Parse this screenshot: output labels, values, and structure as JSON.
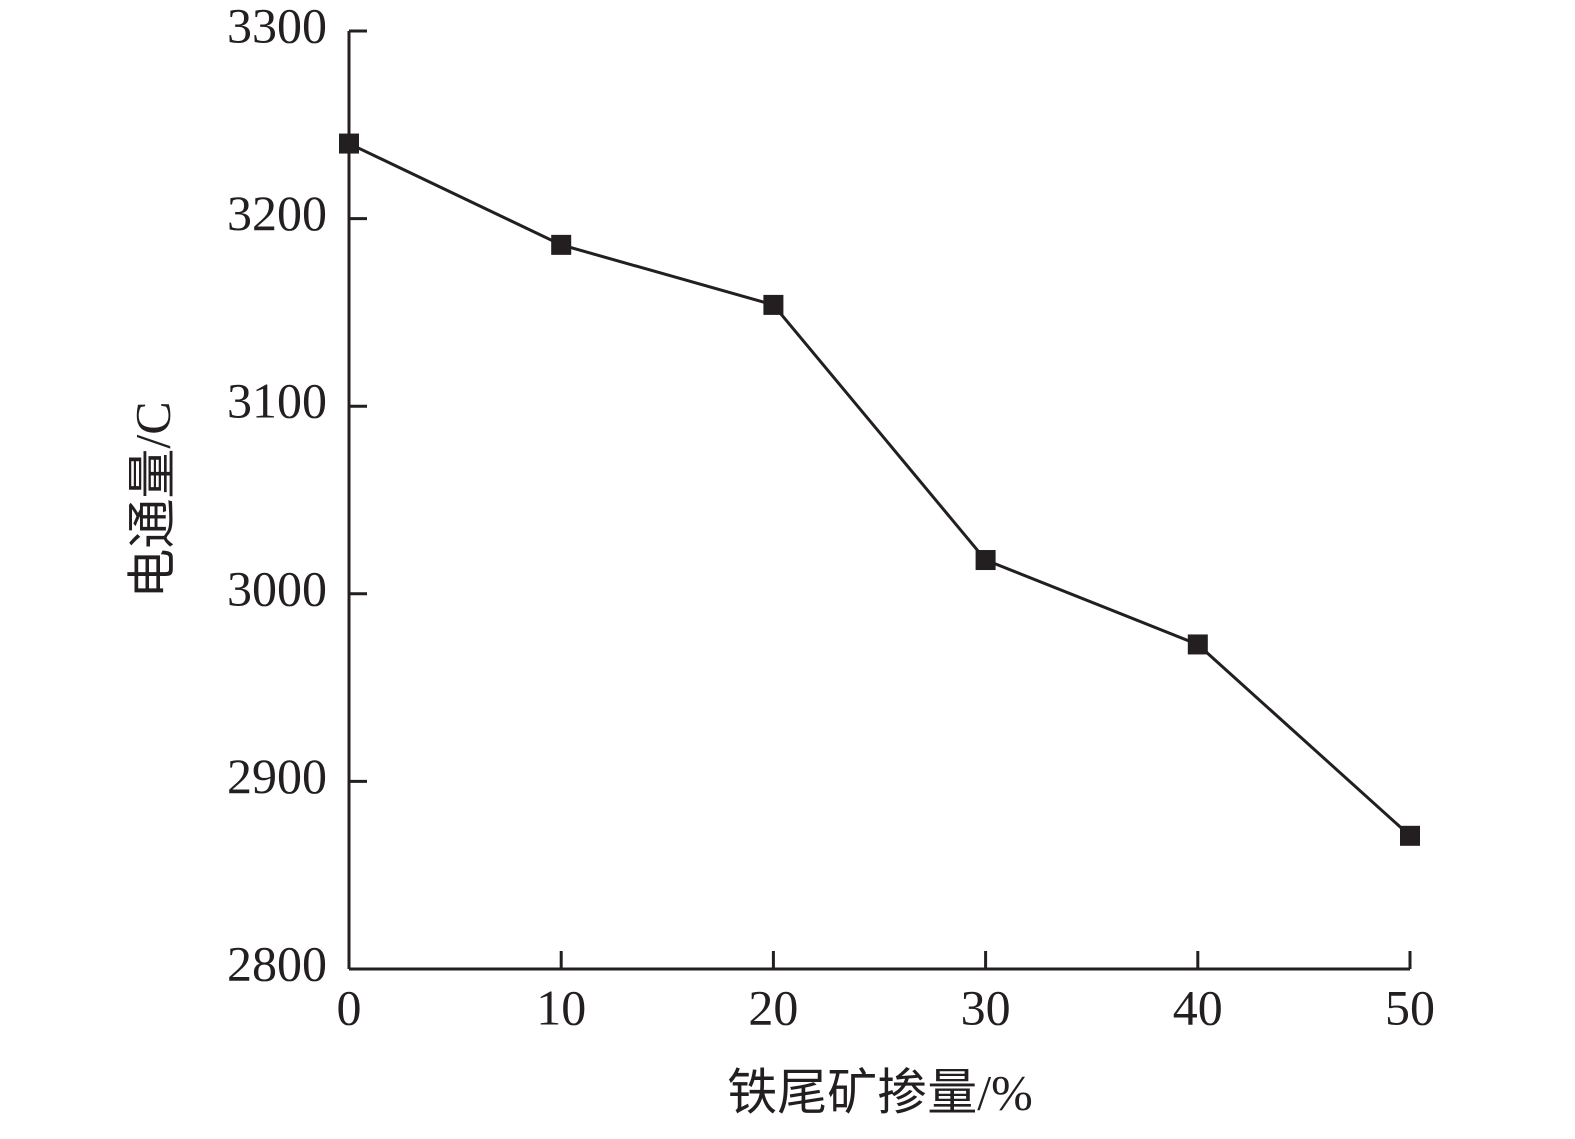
{
  "chart_data": {
    "type": "line",
    "x_label": "铁尾矿掺量/%",
    "y_label": "电通量/C",
    "x": [
      0,
      10,
      20,
      30,
      40,
      50
    ],
    "series": [
      {
        "color": "#231f20",
        "values": [
          3240,
          3186,
          3154,
          3018,
          2973,
          2871
        ]
      }
    ],
    "xlim": [
      0,
      50
    ],
    "xticks": [
      0,
      10,
      20,
      30,
      40,
      50
    ],
    "ylim": [
      2800,
      3300
    ],
    "yticks": [
      2800,
      2900,
      3000,
      3100,
      3200,
      3300
    ]
  }
}
